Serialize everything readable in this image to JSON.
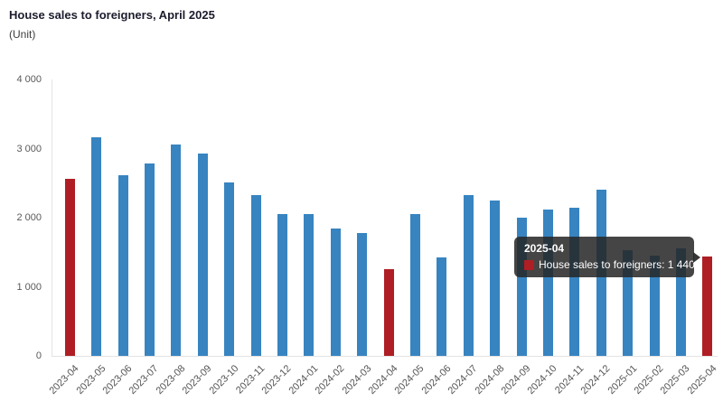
{
  "header": {
    "title": "House sales to foreigners, April 2025",
    "subtitle": "(Unit)"
  },
  "colors": {
    "bar_default": "#3784C1",
    "bar_highlight": "#AE1E24",
    "axis_line": "#e3e3e3",
    "tooltip_background": "#262626"
  },
  "tooltip": {
    "title": "2025-04",
    "series_label": "House sales to foreigners",
    "value_text": "1 440",
    "row_text": "House sales to foreigners: 1 440"
  },
  "chart_data": {
    "type": "bar",
    "title": "House sales to foreigners, April 2025",
    "xlabel": "",
    "ylabel": "(Unit)",
    "ylim": [
      0,
      4000
    ],
    "grid": false,
    "legend_position": "none",
    "y_tick_labels": [
      "4 000",
      "3 000",
      "2 000",
      "1 000",
      "0"
    ],
    "y_tick_values": [
      4000,
      3000,
      2000,
      1000,
      0
    ],
    "categories": [
      "2023-04",
      "2023-05",
      "2023-06",
      "2023-07",
      "2023-08",
      "2023-09",
      "2023-10",
      "2023-11",
      "2023-12",
      "2024-01",
      "2024-02",
      "2024-03",
      "2024-04",
      "2024-05",
      "2024-06",
      "2024-07",
      "2024-08",
      "2024-09",
      "2024-10",
      "2024-11",
      "2024-12",
      "2025-01",
      "2025-02",
      "2025-03",
      "2025-04"
    ],
    "values": [
      2560,
      3160,
      2620,
      2790,
      3060,
      2930,
      2510,
      2330,
      2050,
      2050,
      1840,
      1780,
      1250,
      2050,
      1420,
      2330,
      2250,
      2000,
      2120,
      2140,
      2410,
      1530,
      1450,
      1560,
      1440
    ],
    "highlight_indices": [
      0,
      12,
      24
    ],
    "annotation": {
      "hovered_category": "2025-04",
      "hovered_value": 1440
    }
  }
}
